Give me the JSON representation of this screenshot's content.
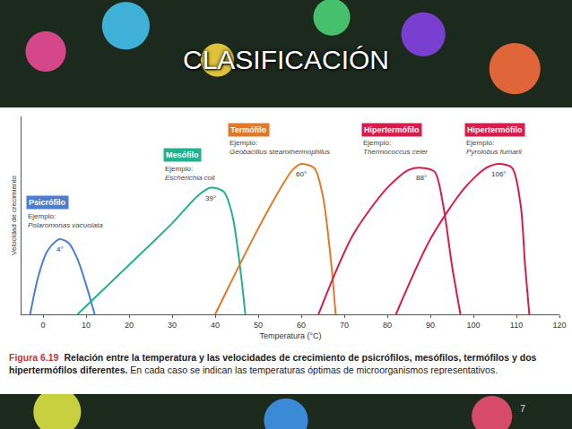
{
  "slide": {
    "title": "CLASIFICACIÓN",
    "page_number": "7"
  },
  "chart_data": {
    "type": "line",
    "x_label": "Temperatura (°C)",
    "y_label": "Velocidad de crecimiento",
    "xlim": [
      -5,
      120
    ],
    "xticks": [
      0,
      10,
      20,
      30,
      40,
      50,
      60,
      70,
      80,
      90,
      100,
      110,
      120
    ],
    "ylim": [
      0,
      100
    ],
    "tick_labels": "x",
    "grid": false,
    "example_prefix": "Ejemplo:",
    "series": [
      {
        "name": "Psicrófilo",
        "color": "#4a7fd0",
        "example": "Polaromonas vacuolata",
        "optimum": 4,
        "optimum_label": "4°",
        "x": [
          -3,
          -1,
          1,
          3,
          4,
          6,
          8,
          10,
          12
        ],
        "values": [
          0,
          20,
          32,
          37,
          38,
          36,
          28,
          15,
          0
        ]
      },
      {
        "name": "Mesófilo",
        "color": "#23b08f",
        "example": "Escherichia coli",
        "optimum": 39,
        "optimum_label": "39°",
        "x": [
          8,
          20,
          30,
          36,
          39,
          42,
          44,
          46,
          47
        ],
        "values": [
          0,
          25,
          46,
          60,
          64,
          62,
          50,
          20,
          0
        ]
      },
      {
        "name": "Termófilo",
        "color": "#e07a2a",
        "example": "Geobacillus stearothermophilus",
        "optimum": 60,
        "optimum_label": "60°",
        "x": [
          40,
          48,
          55,
          58,
          60,
          63,
          65,
          67,
          68
        ],
        "values": [
          0,
          35,
          63,
          73,
          76,
          74,
          60,
          25,
          0
        ]
      },
      {
        "name": "Hipertermófilo",
        "color": "#d61e4c",
        "example": "Thermococcus celer",
        "optimum": 88,
        "optimum_label": "88°",
        "x": [
          64,
          72,
          80,
          85,
          88,
          91,
          93,
          95,
          97
        ],
        "values": [
          0,
          40,
          64,
          73,
          74,
          72,
          55,
          25,
          0
        ]
      },
      {
        "name": "Hipertermófilo",
        "color": "#d61e4c",
        "example": "Pyrolobus fumarii",
        "optimum": 106,
        "optimum_label": "106°",
        "x": [
          82,
          90,
          98,
          103,
          106,
          109,
          111,
          112,
          113
        ],
        "values": [
          0,
          38,
          64,
          74,
          76,
          74,
          55,
          25,
          0
        ]
      }
    ],
    "caption": {
      "label": "Figura 6.19",
      "bold": "Relación entre la temperatura y las velocidades de crecimiento de psicrófilos, mesófilos, termófilos y dos hipertermófilos diferentes.",
      "text": "En cada caso se indican las temperaturas óptimas de microorganismos representativos."
    }
  }
}
